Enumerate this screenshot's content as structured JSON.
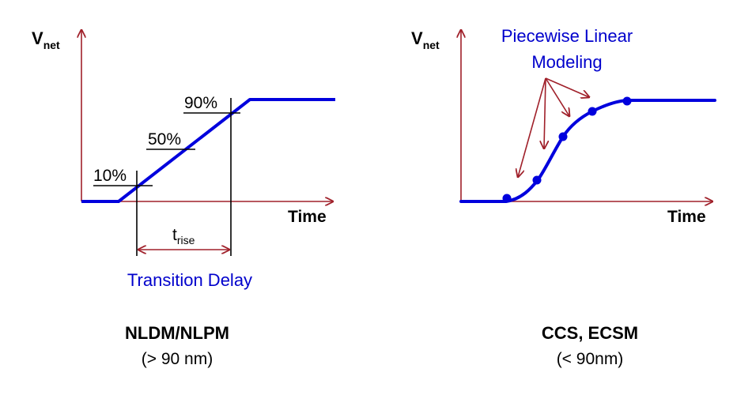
{
  "left_diagram": {
    "y_axis_label": "V",
    "y_axis_subscript": "net",
    "x_axis_label": "Time",
    "thresholds": [
      "10%",
      "50%",
      "90%"
    ],
    "interval_label": "t",
    "interval_subscript": "rise",
    "caption_blue": "Transition Delay",
    "caption_title": "NLDM/NLPM",
    "caption_sub": "(> 90 nm)"
  },
  "right_diagram": {
    "y_axis_label": "V",
    "y_axis_subscript": "net",
    "x_axis_label": "Time",
    "annotation_line1": "Piecewise Linear",
    "annotation_line2": "Modeling",
    "caption_title": "CCS, ECSM",
    "caption_sub": "(< 90nm)"
  },
  "colors": {
    "axis": "#a0202a",
    "signal": "#0000dd",
    "marker": "#000000",
    "annotation_text": "#0000cc"
  }
}
